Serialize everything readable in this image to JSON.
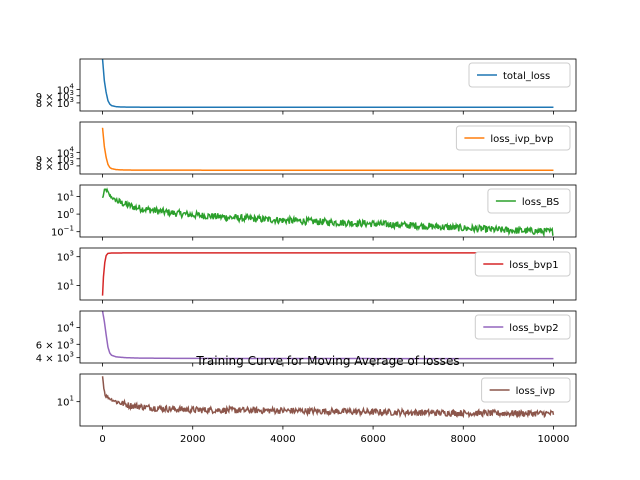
{
  "chart_data": {
    "type": "line",
    "title": "Training Curve for Moving Average of losses",
    "xlabel": "",
    "x_ticks": [
      "0",
      "2000",
      "4000",
      "6000",
      "8000",
      "10000"
    ],
    "x_tick_values": [
      0,
      2000,
      4000,
      6000,
      8000,
      10000
    ],
    "xlim": [
      -500,
      10500
    ],
    "grid": false,
    "subplots": [
      {
        "name": "total_loss",
        "color": "#1f77b4",
        "legend": "total_loss",
        "legend_loc": "upper right",
        "yscale": "log",
        "ylim": [
          7000,
          16500
        ],
        "y_ticks": [
          {
            "label": "10",
            "exp": "4",
            "value": 10000
          },
          {
            "label": "9 × 10",
            "exp": "3",
            "value": 9000
          },
          {
            "label": "8 × 10",
            "exp": "3",
            "value": 8000
          }
        ],
        "x": [
          0,
          40,
          80,
          120,
          160,
          200,
          300,
          400,
          600,
          1000,
          2000,
          4000,
          6000,
          8000,
          10000
        ],
        "y": [
          16500,
          11500,
          9500,
          8300,
          7850,
          7650,
          7520,
          7480,
          7460,
          7450,
          7445,
          7440,
          7440,
          7440,
          7440
        ]
      },
      {
        "name": "loss_ivp_bvp",
        "color": "#ff7f0e",
        "legend": "loss_ivp_bvp",
        "legend_loc": "upper right",
        "yscale": "log",
        "ylim": [
          7000,
          16500
        ],
        "y_ticks": [
          {
            "label": "10",
            "exp": "4",
            "value": 10000
          },
          {
            "label": "9 × 10",
            "exp": "3",
            "value": 9000
          },
          {
            "label": "8 × 10",
            "exp": "3",
            "value": 8000
          }
        ],
        "x": [
          0,
          40,
          80,
          120,
          160,
          200,
          300,
          400,
          600,
          1000,
          2000,
          4000,
          6000,
          8000,
          10000
        ],
        "y": [
          15000,
          11000,
          9200,
          8200,
          7800,
          7650,
          7530,
          7490,
          7470,
          7460,
          7455,
          7450,
          7450,
          7450,
          7450
        ]
      },
      {
        "name": "loss_BS",
        "color": "#2ca02c",
        "legend": "loss_BS",
        "legend_loc": "upper right",
        "yscale": "log",
        "ylim": [
          0.05,
          45
        ],
        "y_ticks": [
          {
            "label": "10",
            "exp": "1",
            "value": 10
          },
          {
            "label": "10",
            "exp": "0",
            "value": 1
          },
          {
            "label": "10",
            "exp": "−1",
            "value": 0.1
          }
        ],
        "x": [
          0,
          50,
          100,
          150,
          250,
          400,
          700,
          1000,
          1500,
          2000,
          3000,
          4000,
          5000,
          6000,
          7000,
          8000,
          9000,
          10000
        ],
        "y": [
          8,
          25,
          22,
          12,
          7,
          4.5,
          2.5,
          1.8,
          1.2,
          0.9,
          0.6,
          0.45,
          0.35,
          0.28,
          0.22,
          0.16,
          0.12,
          0.1
        ],
        "noise": 0.2
      },
      {
        "name": "loss_bvp1",
        "color": "#d62728",
        "legend": "loss_bvp1",
        "legend_loc": "upper right",
        "yscale": "log",
        "ylim": [
          1,
          4000
        ],
        "y_ticks": [
          {
            "label": "10",
            "exp": "3",
            "value": 1000
          },
          {
            "label": "10",
            "exp": "1",
            "value": 10
          }
        ],
        "x": [
          0,
          20,
          50,
          80,
          120,
          200,
          400,
          1000,
          2000,
          4000,
          6000,
          8000,
          10000
        ],
        "y": [
          2,
          40,
          400,
          1200,
          1700,
          1800,
          1820,
          1830,
          1830,
          1830,
          1830,
          1830,
          1830
        ]
      },
      {
        "name": "loss_bvp2",
        "color": "#9467bd",
        "legend": "loss_bvp2",
        "legend_loc": "upper right",
        "yscale": "log",
        "ylim": [
          3400,
          16500
        ],
        "y_ticks": [
          {
            "label": "10",
            "exp": "4",
            "value": 10000
          },
          {
            "label": "6 × 10",
            "exp": "3",
            "value": 6000
          },
          {
            "label": "4 × 10",
            "exp": "3",
            "value": 4000
          }
        ],
        "x": [
          0,
          40,
          80,
          120,
          160,
          200,
          300,
          500,
          800,
          1500,
          3000,
          6000,
          10000
        ],
        "y": [
          16500,
          12000,
          8000,
          5500,
          4600,
          4300,
          4100,
          4000,
          3950,
          3920,
          3900,
          3890,
          3885
        ]
      },
      {
        "name": "loss_ivp",
        "color": "#8c564b",
        "legend": "loss_ivp",
        "legend_loc": "upper right",
        "yscale": "log",
        "ylim": [
          3.5,
          33
        ],
        "y_ticks": [
          {
            "label": "10",
            "exp": "1",
            "value": 10
          }
        ],
        "x": [
          0,
          30,
          60,
          100,
          150,
          250,
          400,
          600,
          1000,
          1500,
          2000,
          3000,
          4000,
          6000,
          8000,
          10000
        ],
        "y": [
          30,
          18,
          13,
          12.5,
          11.5,
          10.5,
          9.5,
          8.5,
          7.8,
          7.3,
          7.0,
          6.9,
          6.8,
          6.4,
          6.1,
          6.0
        ],
        "noise": 0.06
      }
    ]
  }
}
